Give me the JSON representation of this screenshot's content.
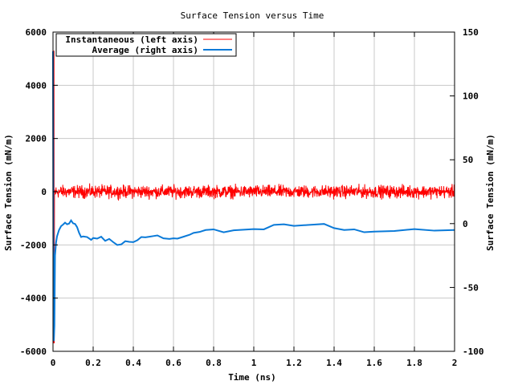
{
  "chart_data": {
    "type": "line",
    "title": "Surface Tension versus Time",
    "xlabel": "Time (ns)",
    "ylabel": "Surface Tension (mN/m)",
    "y2label": "Surface Tension (mN/m)",
    "xlim": [
      0,
      2
    ],
    "ylim": [
      -6000,
      6000
    ],
    "y2lim": [
      -100,
      150
    ],
    "xticks": [
      "0",
      "0.2",
      "0.4",
      "0.6",
      "0.8",
      "1",
      "1.2",
      "1.4",
      "1.6",
      "1.8",
      "2"
    ],
    "yticks": [
      "-6000",
      "-4000",
      "-2000",
      "0",
      "2000",
      "4000",
      "6000"
    ],
    "y2ticks": [
      "-100",
      "-50",
      "0",
      "50",
      "100",
      "150"
    ],
    "grid": true,
    "legend_position": "top-left",
    "series": [
      {
        "name": "Instantaneous (left axis)",
        "axis": "left",
        "color": "#ff0000",
        "style": "noisy",
        "mean": 0,
        "amplitude": 250,
        "x_range": [
          0,
          2
        ]
      },
      {
        "name": "Average (right axis)",
        "axis": "right",
        "color": "#0a7ad8",
        "x": [
          0.0,
          0.002,
          0.004,
          0.007,
          0.01,
          0.015,
          0.02,
          0.03,
          0.04,
          0.05,
          0.06,
          0.07,
          0.08,
          0.09,
          0.1,
          0.11,
          0.12,
          0.13,
          0.14,
          0.15,
          0.17,
          0.19,
          0.2,
          0.22,
          0.24,
          0.26,
          0.28,
          0.3,
          0.32,
          0.34,
          0.36,
          0.38,
          0.4,
          0.42,
          0.44,
          0.46,
          0.48,
          0.5,
          0.52,
          0.55,
          0.58,
          0.6,
          0.62,
          0.65,
          0.68,
          0.7,
          0.73,
          0.76,
          0.8,
          0.85,
          0.9,
          0.95,
          1.0,
          1.05,
          1.1,
          1.15,
          1.2,
          1.25,
          1.3,
          1.35,
          1.4,
          1.45,
          1.5,
          1.55,
          1.6,
          1.7,
          1.8,
          1.9,
          2.0
        ],
        "values": [
          135,
          -15,
          -92,
          -80,
          -25,
          -15,
          -10,
          -5,
          -2,
          -1,
          0,
          0,
          0,
          2,
          1,
          0,
          -3,
          -8,
          -10,
          -10,
          -11,
          -12,
          -11,
          -12,
          -11,
          -13,
          -12,
          -15,
          -16,
          -16,
          -14,
          -15,
          -14,
          -13,
          -11,
          -10,
          -10,
          -10,
          -10,
          -11,
          -12,
          -12,
          -11,
          -10,
          -9,
          -8,
          -6,
          -5,
          -5,
          -6,
          -5,
          -5,
          -5,
          -4,
          -1,
          -1,
          -1,
          -1,
          -1,
          -1,
          -3,
          -5,
          -5,
          -6,
          -6,
          -6,
          -5,
          -5,
          -5
        ]
      }
    ]
  }
}
